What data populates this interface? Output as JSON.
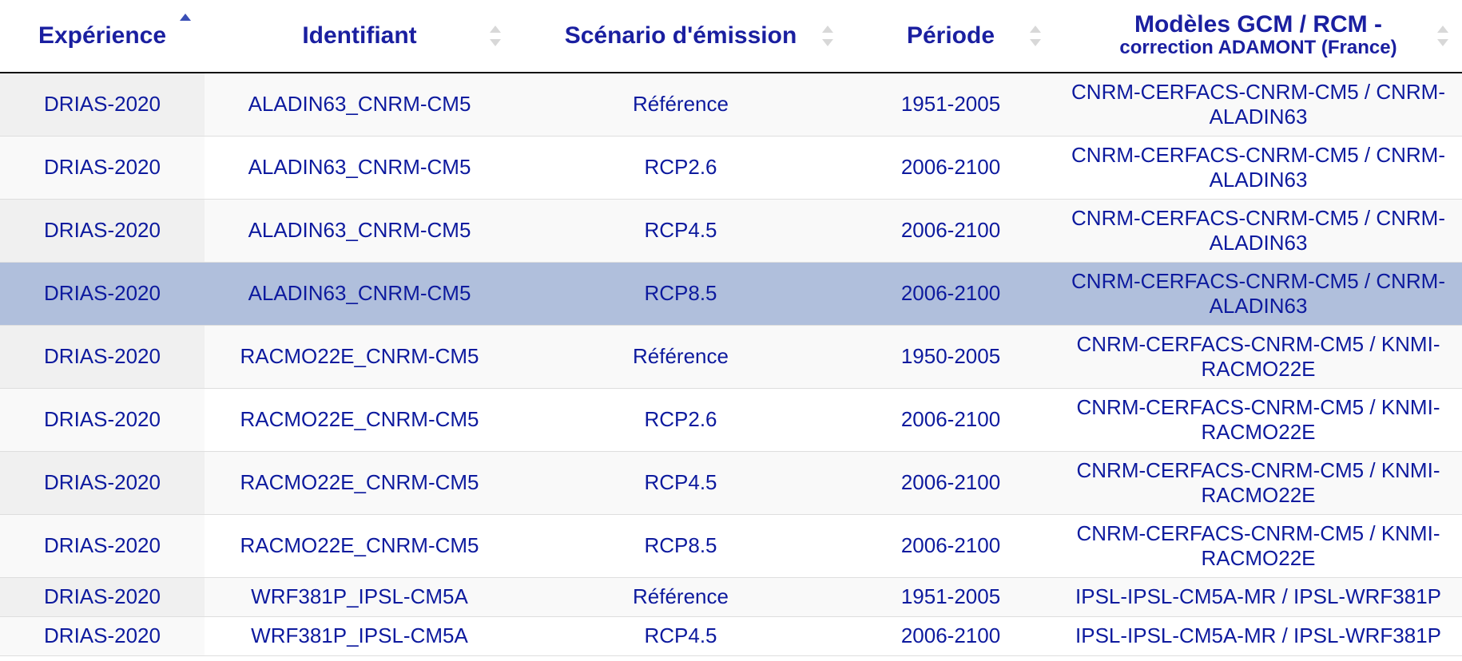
{
  "table": {
    "columns": [
      {
        "label": "Expérience",
        "sort": "asc"
      },
      {
        "label": "Identifiant",
        "sort": "none"
      },
      {
        "label": "Scénario d'émission",
        "sort": "none"
      },
      {
        "label": "Période",
        "sort": "none"
      },
      {
        "label": "Modèles GCM / RCM -",
        "sublabel": "correction ADAMONT (France)",
        "sort": "none"
      }
    ],
    "rows": [
      {
        "experience": "DRIAS-2020",
        "identifiant": "ALADIN63_CNRM-CM5",
        "scenario": "Référence",
        "periode": "1951-2005",
        "modeles": "CNRM-CERFACS-CNRM-CM5 / CNRM-ALADIN63"
      },
      {
        "experience": "DRIAS-2020",
        "identifiant": "ALADIN63_CNRM-CM5",
        "scenario": "RCP2.6",
        "periode": "2006-2100",
        "modeles": "CNRM-CERFACS-CNRM-CM5 / CNRM-ALADIN63"
      },
      {
        "experience": "DRIAS-2020",
        "identifiant": "ALADIN63_CNRM-CM5",
        "scenario": "RCP4.5",
        "periode": "2006-2100",
        "modeles": "CNRM-CERFACS-CNRM-CM5 / CNRM-ALADIN63"
      },
      {
        "experience": "DRIAS-2020",
        "identifiant": "ALADIN63_CNRM-CM5",
        "scenario": "RCP8.5",
        "periode": "2006-2100",
        "modeles": "CNRM-CERFACS-CNRM-CM5 / CNRM-ALADIN63"
      },
      {
        "experience": "DRIAS-2020",
        "identifiant": "RACMO22E_CNRM-CM5",
        "scenario": "Référence",
        "periode": "1950-2005",
        "modeles": "CNRM-CERFACS-CNRM-CM5 / KNMI-RACMO22E"
      },
      {
        "experience": "DRIAS-2020",
        "identifiant": "RACMO22E_CNRM-CM5",
        "scenario": "RCP2.6",
        "periode": "2006-2100",
        "modeles": "CNRM-CERFACS-CNRM-CM5 / KNMI-RACMO22E"
      },
      {
        "experience": "DRIAS-2020",
        "identifiant": "RACMO22E_CNRM-CM5",
        "scenario": "RCP4.5",
        "periode": "2006-2100",
        "modeles": "CNRM-CERFACS-CNRM-CM5 / KNMI-RACMO22E"
      },
      {
        "experience": "DRIAS-2020",
        "identifiant": "RACMO22E_CNRM-CM5",
        "scenario": "RCP8.5",
        "periode": "2006-2100",
        "modeles": "CNRM-CERFACS-CNRM-CM5 / KNMI-RACMO22E"
      },
      {
        "experience": "DRIAS-2020",
        "identifiant": "WRF381P_IPSL-CM5A",
        "scenario": "Référence",
        "periode": "1951-2005",
        "modeles": "IPSL-IPSL-CM5A-MR / IPSL-WRF381P"
      },
      {
        "experience": "DRIAS-2020",
        "identifiant": "WRF381P_IPSL-CM5A",
        "scenario": "RCP4.5",
        "periode": "2006-2100",
        "modeles": "IPSL-IPSL-CM5A-MR / IPSL-WRF381P"
      }
    ],
    "selected_row": 3,
    "colors": {
      "text": "#0d1a9e",
      "header_text": "#1a1fa0",
      "selected_bg": "#b0bfdc",
      "sort_active": "#3a4fb6",
      "sort_inactive": "#d8d8d8"
    }
  }
}
